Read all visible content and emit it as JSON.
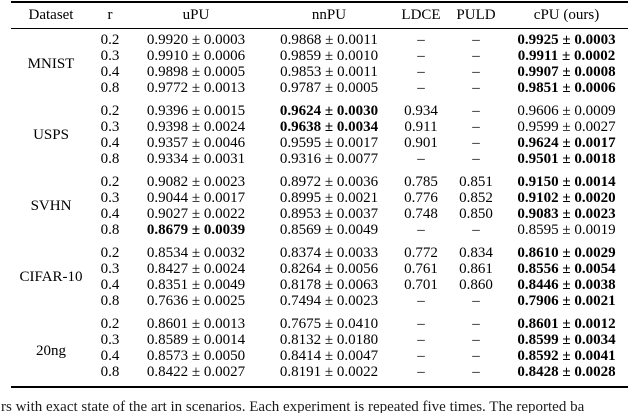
{
  "table": {
    "columns": [
      "Dataset",
      "r",
      "uPU",
      "nnPU",
      "LDCE",
      "PULD",
      "cPU (ours)"
    ],
    "groups": [
      {
        "dataset": "MNIST",
        "rows": [
          {
            "r": "0.2",
            "upu": "0.9920 ± 0.0003",
            "nnpu": "0.9868 ± 0.0011",
            "ldce": "–",
            "puld": "–",
            "cpu": "0.9925 ± 0.0003",
            "bold": [
              "cpu"
            ]
          },
          {
            "r": "0.3",
            "upu": "0.9910 ± 0.0006",
            "nnpu": "0.9859 ± 0.0010",
            "ldce": "–",
            "puld": "–",
            "cpu": "0.9911 ± 0.0002",
            "bold": [
              "cpu"
            ]
          },
          {
            "r": "0.4",
            "upu": "0.9898 ± 0.0005",
            "nnpu": "0.9853 ± 0.0011",
            "ldce": "–",
            "puld": "–",
            "cpu": "0.9907 ± 0.0008",
            "bold": [
              "cpu"
            ]
          },
          {
            "r": "0.8",
            "upu": "0.9772 ± 0.0013",
            "nnpu": "0.9787 ± 0.0005",
            "ldce": "–",
            "puld": "–",
            "cpu": "0.9851 ± 0.0006",
            "bold": [
              "cpu"
            ]
          }
        ]
      },
      {
        "dataset": "USPS",
        "rows": [
          {
            "r": "0.2",
            "upu": "0.9396 ± 0.0015",
            "nnpu": "0.9624 ± 0.0030",
            "ldce": "0.934",
            "puld": "–",
            "cpu": "0.9606 ± 0.0009",
            "bold": [
              "nnpu"
            ]
          },
          {
            "r": "0.3",
            "upu": "0.9398 ± 0.0024",
            "nnpu": "0.9638 ± 0.0034",
            "ldce": "0.911",
            "puld": "–",
            "cpu": "0.9599 ± 0.0027",
            "bold": [
              "nnpu"
            ]
          },
          {
            "r": "0.4",
            "upu": "0.9357 ± 0.0046",
            "nnpu": "0.9595 ± 0.0017",
            "ldce": "0.901",
            "puld": "–",
            "cpu": "0.9624 ± 0.0017",
            "bold": [
              "cpu"
            ]
          },
          {
            "r": "0.8",
            "upu": "0.9334 ± 0.0031",
            "nnpu": "0.9316 ± 0.0077",
            "ldce": "–",
            "puld": "–",
            "cpu": "0.9501 ± 0.0018",
            "bold": [
              "cpu"
            ]
          }
        ]
      },
      {
        "dataset": "SVHN",
        "rows": [
          {
            "r": "0.2",
            "upu": "0.9082 ± 0.0023",
            "nnpu": "0.8972 ± 0.0036",
            "ldce": "0.785",
            "puld": "0.851",
            "cpu": "0.9150 ± 0.0014",
            "bold": [
              "cpu"
            ]
          },
          {
            "r": "0.3",
            "upu": "0.9044 ± 0.0017",
            "nnpu": "0.8995 ± 0.0021",
            "ldce": "0.776",
            "puld": "0.852",
            "cpu": "0.9102 ± 0.0020",
            "bold": [
              "cpu"
            ]
          },
          {
            "r": "0.4",
            "upu": "0.9027 ± 0.0022",
            "nnpu": "0.8953 ± 0.0037",
            "ldce": "0.748",
            "puld": "0.850",
            "cpu": "0.9083 ± 0.0023",
            "bold": [
              "cpu"
            ]
          },
          {
            "r": "0.8",
            "upu": "0.8679 ± 0.0039",
            "nnpu": "0.8569 ± 0.0049",
            "ldce": "–",
            "puld": "–",
            "cpu": "0.8595 ± 0.0019",
            "bold": [
              "upu"
            ]
          }
        ]
      },
      {
        "dataset": "CIFAR-10",
        "rows": [
          {
            "r": "0.2",
            "upu": "0.8534 ± 0.0032",
            "nnpu": "0.8374 ± 0.0033",
            "ldce": "0.772",
            "puld": "0.834",
            "cpu": "0.8610 ± 0.0029",
            "bold": [
              "cpu"
            ]
          },
          {
            "r": "0.3",
            "upu": "0.8427 ± 0.0024",
            "nnpu": "0.8264 ± 0.0056",
            "ldce": "0.761",
            "puld": "0.861",
            "cpu": "0.8556 ± 0.0054",
            "bold": [
              "cpu"
            ]
          },
          {
            "r": "0.4",
            "upu": "0.8351 ± 0.0049",
            "nnpu": "0.8178 ± 0.0063",
            "ldce": "0.701",
            "puld": "0.860",
            "cpu": "0.8446 ± 0.0038",
            "bold": [
              "cpu"
            ]
          },
          {
            "r": "0.8",
            "upu": "0.7636 ± 0.0025",
            "nnpu": "0.7494 ± 0.0023",
            "ldce": "–",
            "puld": "–",
            "cpu": "0.7906 ± 0.0021",
            "bold": [
              "cpu"
            ]
          }
        ]
      },
      {
        "dataset": "20ng",
        "rows": [
          {
            "r": "0.2",
            "upu": "0.8601 ± 0.0013",
            "nnpu": "0.7675 ± 0.0410",
            "ldce": "–",
            "puld": "–",
            "cpu": "0.8601 ± 0.0012",
            "bold": [
              "cpu"
            ]
          },
          {
            "r": "0.3",
            "upu": "0.8589 ± 0.0014",
            "nnpu": "0.8132 ± 0.0180",
            "ldce": "–",
            "puld": "–",
            "cpu": "0.8599 ± 0.0034",
            "bold": [
              "cpu"
            ]
          },
          {
            "r": "0.4",
            "upu": "0.8573 ± 0.0050",
            "nnpu": "0.8414 ± 0.0047",
            "ldce": "–",
            "puld": "–",
            "cpu": "0.8592 ± 0.0041",
            "bold": [
              "cpu"
            ]
          },
          {
            "r": "0.8",
            "upu": "0.8422 ± 0.0027",
            "nnpu": "0.8191 ± 0.0022",
            "ldce": "–",
            "puld": "–",
            "cpu": "0.8428 ± 0.0028",
            "bold": [
              "cpu"
            ]
          }
        ]
      }
    ]
  },
  "caption_fragment": "rs with exact state of the art in scenarios. Each experiment is repeated five times. The reported ba"
}
